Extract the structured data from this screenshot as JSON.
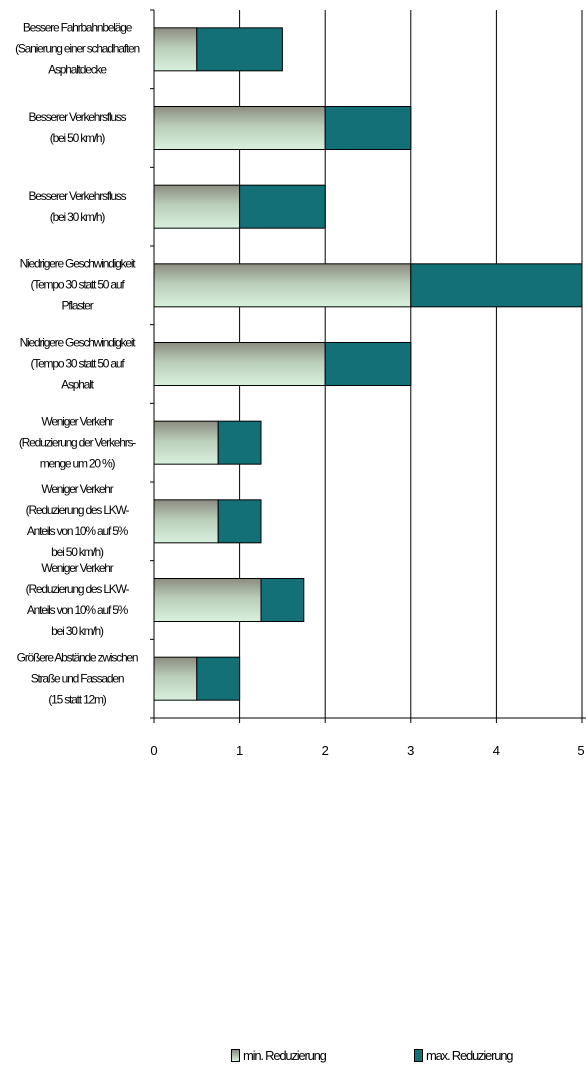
{
  "chart_data": {
    "type": "bar",
    "orientation": "horizontal",
    "stacked": true,
    "categories": [
      "Bessere Fahrbahnbeläge (Sanierung einer schadhaften Asphaltdecke",
      "Besserer Verkehrsfluss (bei 50 km/h)",
      "Besserer Verkehrsfluss (bei 30 km/h)",
      "Niedrigere Geschwindigkeit (Tempo 30 statt 50 auf Pflaster",
      "Niedrigere Geschwindigkeit (Tempo 30 statt 50 auf Asphalt",
      "Weniger Verkehr (Reduzierung der Verkehrs-menge um 20 %)",
      "Weniger Verkehr (Reduzierung des LKW-Anteils von 10% auf 5% bei 50 km/h)",
      "Weniger Verkehr (Reduzierung des LKW-Anteils von 10% auf 5% bei 30 km/h)",
      "Größere Abstände zwischen Straße und Fassaden (15 statt 12m)"
    ],
    "category_lines": [
      [
        "Bessere Fahrbahnbeläge",
        "(Sanierung einer schadhaften",
        "Asphaltdecke"
      ],
      [
        "Besserer Verkehrsfluss",
        "(bei 50 km/h)"
      ],
      [
        "Besserer Verkehrsfluss",
        "(bei 30 km/h)"
      ],
      [
        "Niedrigere Geschwindigkeit",
        "(Tempo 30 statt 50 auf",
        "Pflaster"
      ],
      [
        "Niedrigere Geschwindigkeit",
        "(Tempo 30 statt 50 auf",
        "Asphalt"
      ],
      [
        "Weniger Verkehr",
        "(Reduzierung der Verkehrs-",
        "menge um 20 %)"
      ],
      [
        "Weniger Verkehr",
        "(Reduzierung des LKW-",
        "Anteils von 10% auf 5%",
        "bei 50 km/h)"
      ],
      [
        "Weniger Verkehr",
        "(Reduzierung des LKW-",
        "Anteils von 10% auf 5%",
        "bei 30 km/h)"
      ],
      [
        "Größere Abstände zwischen",
        "Straße und Fassaden",
        "(15 statt 12m)"
      ]
    ],
    "series": [
      {
        "name": "min. Reduzierung",
        "values": [
          0.5,
          2,
          1,
          3,
          2,
          0.75,
          0.75,
          1.25,
          0.5
        ]
      },
      {
        "name": "max. Reduzierung",
        "values": [
          1,
          1,
          1,
          2,
          1,
          0.5,
          0.5,
          0.5,
          0.5
        ]
      }
    ],
    "x_ticks": [
      "0",
      "1",
      "2",
      "3",
      "4",
      "5"
    ],
    "xlim": [
      0,
      5
    ],
    "grid": true,
    "legend_position": "bottom",
    "colors": {
      "min": "#c8e6cc",
      "min_dark": "#8c8c80",
      "max": "#137077",
      "axis": "#000000"
    }
  }
}
